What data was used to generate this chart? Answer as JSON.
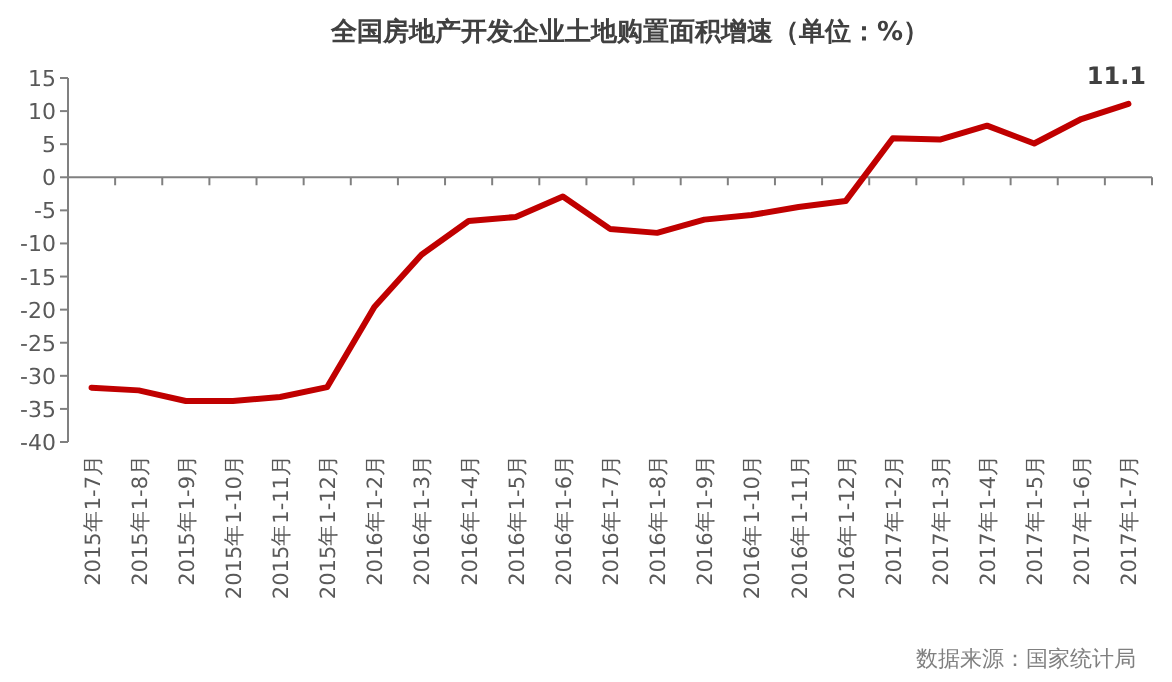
{
  "chart_data": {
    "type": "line",
    "title": "全国房地产开发企业土地购置面积增速（单位：%）",
    "categories": [
      "2015年1-7月",
      "2015年1-8月",
      "2015年1-9月",
      "2015年1-10月",
      "2015年1-11月",
      "2015年1-12月",
      "2016年1-2月",
      "2016年1-3月",
      "2016年1-4月",
      "2016年1-5月",
      "2016年1-6月",
      "2016年1-7月",
      "2016年1-8月",
      "2016年1-9月",
      "2016年1-10月",
      "2016年1-11月",
      "2016年1-12月",
      "2017年1-2月",
      "2017年1-3月",
      "2017年1-4月",
      "2017年1-5月",
      "2017年1-6月",
      "2017年1-7月"
    ],
    "series": [
      {
        "color": "#c00000",
        "values": [
          -31.8,
          -32.2,
          -33.8,
          -33.8,
          -33.2,
          -31.7,
          -19.6,
          -11.7,
          -6.6,
          -6.0,
          -2.9,
          -7.8,
          -8.4,
          -6.4,
          -5.7,
          -4.5,
          -3.6,
          5.9,
          5.7,
          7.8,
          5.1,
          8.8,
          11.1
        ],
        "value_labels": [
          null,
          null,
          null,
          null,
          null,
          null,
          null,
          null,
          null,
          null,
          null,
          null,
          null,
          null,
          null,
          null,
          null,
          null,
          null,
          null,
          null,
          null,
          "11.1"
        ]
      }
    ],
    "ylim": [
      -40,
      15
    ],
    "yticks": [
      -40,
      -35,
      -30,
      -25,
      -20,
      -15,
      -10,
      -5,
      0,
      5,
      10,
      15
    ],
    "marker": "none",
    "line_style": "solid",
    "annotations": [
      "数据来源：国家统计局"
    ]
  }
}
